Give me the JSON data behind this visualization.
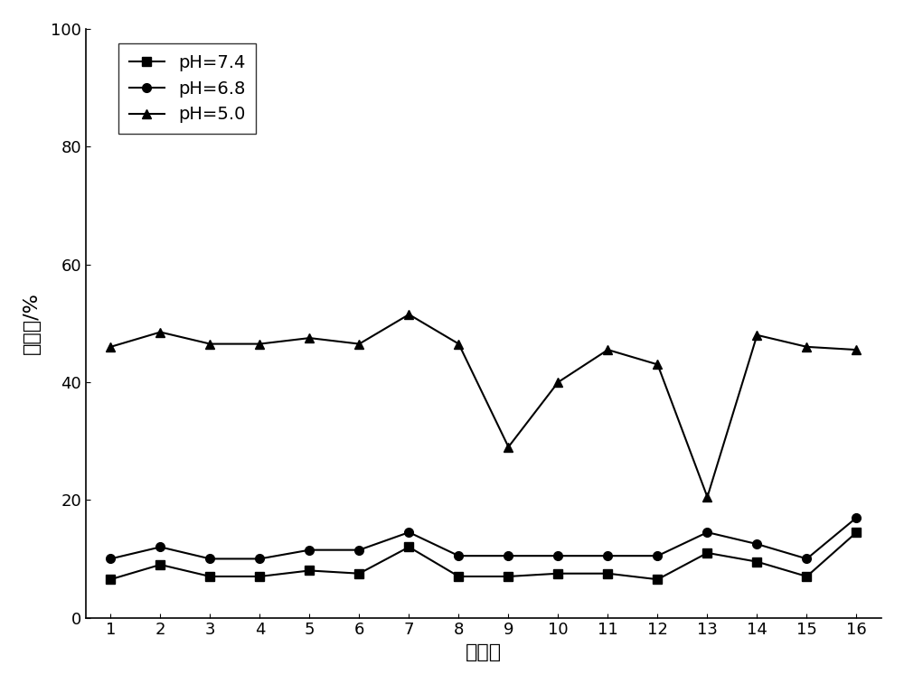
{
  "x": [
    1,
    2,
    3,
    4,
    5,
    6,
    7,
    8,
    9,
    10,
    11,
    12,
    13,
    14,
    15,
    16
  ],
  "ph74": [
    6.5,
    9.0,
    7.0,
    7.0,
    8.0,
    7.5,
    12.0,
    7.0,
    7.0,
    7.5,
    7.5,
    6.5,
    11.0,
    9.5,
    7.0,
    14.5
  ],
  "ph68": [
    10.0,
    12.0,
    10.0,
    10.0,
    11.5,
    11.5,
    14.5,
    10.5,
    10.5,
    10.5,
    10.5,
    10.5,
    14.5,
    12.5,
    10.0,
    17.0
  ],
  "ph50": [
    46.0,
    48.5,
    46.5,
    46.5,
    47.5,
    46.5,
    51.5,
    46.5,
    29.0,
    40.0,
    45.5,
    43.0,
    20.5,
    48.0,
    46.0,
    45.5
  ],
  "xlabel": "实施例",
  "ylabel": "释放率/%",
  "ylim": [
    0,
    100
  ],
  "line_color": "#000000",
  "legend_labels": [
    "pH=7.4",
    "pH=6.8",
    "pH=5.0"
  ],
  "marker_74": "s",
  "marker_68": "o",
  "marker_50": "^",
  "axis_fontsize": 16,
  "legend_fontsize": 14,
  "tick_fontsize": 13,
  "yticks": [
    0,
    20,
    40,
    60,
    80,
    100
  ],
  "xticks": [
    1,
    2,
    3,
    4,
    5,
    6,
    7,
    8,
    9,
    10,
    11,
    12,
    13,
    14,
    15,
    16
  ]
}
